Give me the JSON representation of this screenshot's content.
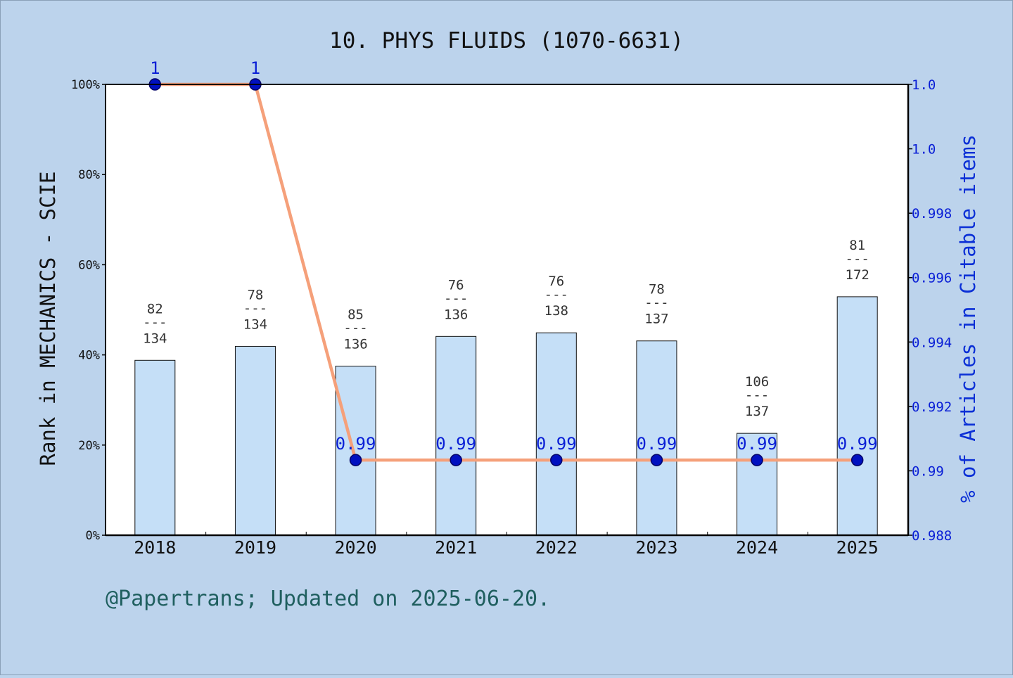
{
  "chart_data": {
    "type": "bar",
    "title": "10. PHYS FLUIDS (1070-6631)",
    "categories": [
      "2018",
      "2019",
      "2020",
      "2021",
      "2022",
      "2023",
      "2024",
      "2025"
    ],
    "ylabel": "Rank in MECHANICS - SCIE",
    "y2label": "% of Articles in Citable items",
    "ylim": [
      0,
      100
    ],
    "y2lim": [
      0.988,
      1.0
    ],
    "yticks": [
      "0%",
      "20%",
      "40%",
      "60%",
      "80%",
      "100%"
    ],
    "y2ticks": [
      "0.988",
      "0.99",
      "0.992",
      "0.994",
      "0.996",
      "0.998",
      "1.0",
      "1.0"
    ],
    "series": [
      {
        "kind": "bar",
        "values": [
          38.8,
          41.9,
          37.5,
          44.1,
          44.9,
          43.1,
          22.6,
          52.9
        ],
        "ranks": [
          "82",
          "78",
          "85",
          "76",
          "76",
          "78",
          "106",
          "81"
        ],
        "totals": [
          "134",
          "134",
          "136",
          "136",
          "138",
          "137",
          "137",
          "172"
        ],
        "color": "#c5dff7"
      },
      {
        "kind": "line",
        "axis": "right",
        "values": [
          1,
          1,
          0.99,
          0.99,
          0.99,
          0.99,
          0.99,
          0.99
        ],
        "labels": [
          "1",
          "1",
          "0.99",
          "0.99",
          "0.99",
          "0.99",
          "0.99",
          "0.99"
        ],
        "color": "#f5a07a"
      }
    ],
    "grid": false
  },
  "footer": "@Papertrans; Updated on 2025-06-20."
}
